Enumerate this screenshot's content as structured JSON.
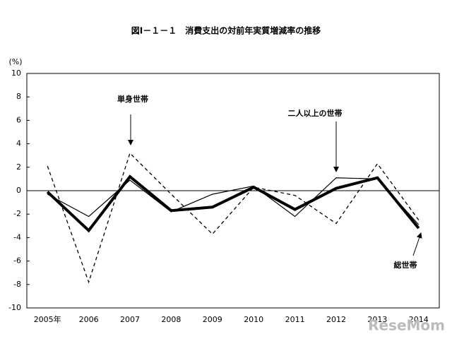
{
  "chart_data": {
    "type": "line",
    "title": "図Ⅰ－１－１　消費支出の対前年実質増減率の推移",
    "y_unit": "(%)",
    "categories": [
      "2005年",
      "2006",
      "2007",
      "2008",
      "2009",
      "2010",
      "2011",
      "2012",
      "2013",
      "2014"
    ],
    "series": [
      {
        "name": "単身世帯",
        "color": "#000000",
        "line_style": "dashed",
        "values": [
          2.1,
          -7.8,
          3.2,
          -0.3,
          -3.7,
          0.3,
          -0.4,
          -2.8,
          2.3,
          -2.5
        ]
      },
      {
        "name": "二人以上の世帯",
        "color": "#000000",
        "line_style": "solid",
        "values": [
          -0.3,
          -2.2,
          0.9,
          -1.8,
          -0.3,
          0.4,
          -2.2,
          1.1,
          1.0,
          -2.9
        ]
      },
      {
        "name": "総世帯",
        "color": "#000000",
        "line_style": "thick",
        "values": [
          -0.1,
          -3.4,
          1.2,
          -1.7,
          -1.4,
          0.3,
          -1.6,
          0.2,
          1.1,
          -3.2
        ]
      }
    ],
    "ylim": [
      -10,
      10
    ],
    "yticks": [
      -10,
      -8,
      -6,
      -4,
      -2,
      0,
      2,
      4,
      6,
      8,
      10
    ],
    "zero_line": true,
    "annotations": [
      "単身世帯",
      "二人以上の世帯",
      "総世帯"
    ],
    "watermark": "ReseMom"
  }
}
